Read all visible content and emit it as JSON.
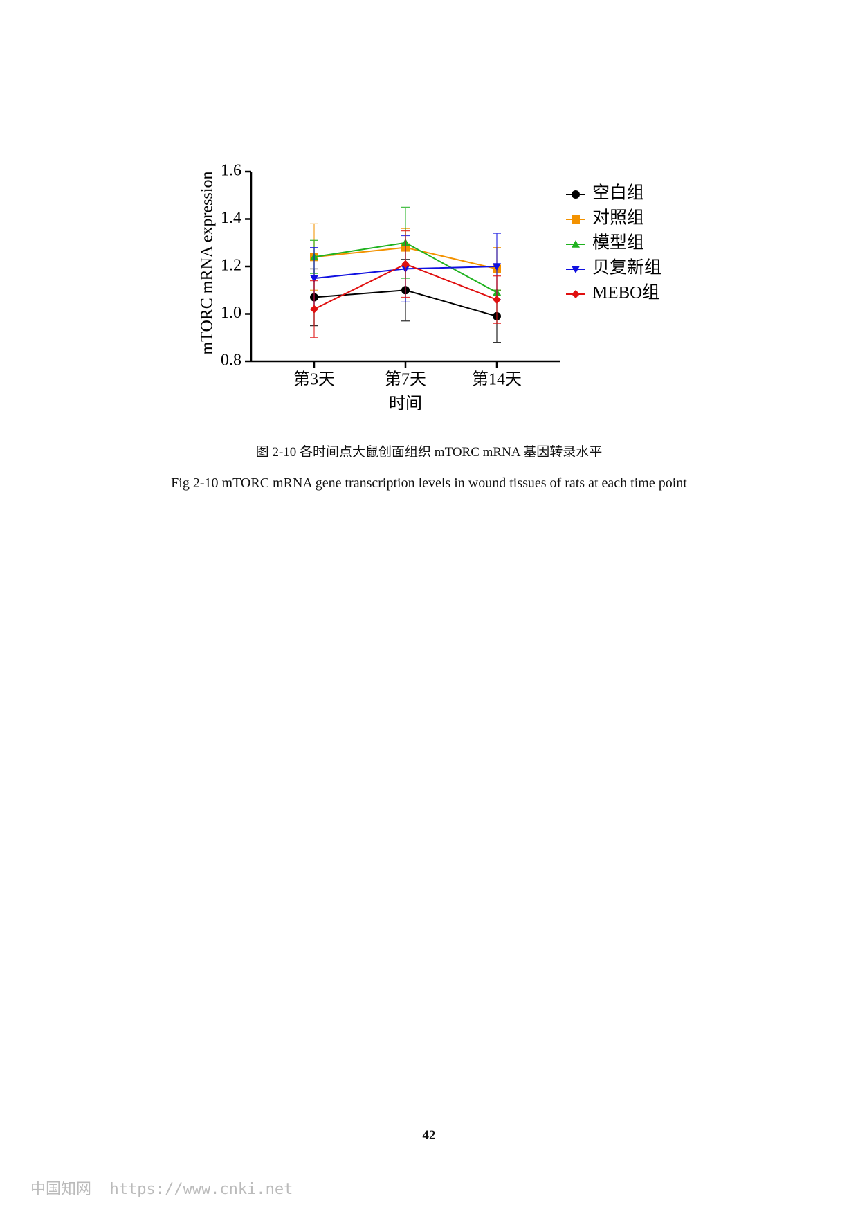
{
  "chart_data": {
    "type": "line",
    "ylabel": "mTORC mRNA expression",
    "xlabel": "时间",
    "categories": [
      "第3天",
      "第7天",
      "第14天"
    ],
    "ylim": [
      0.8,
      1.6
    ],
    "yticks": [
      0.8,
      {
        "value": 1,
        "label": "1.0"
      },
      1.2,
      1.4,
      1.6
    ],
    "legend": "right",
    "series": [
      {
        "name": "空白组",
        "color": "#000000",
        "marker": "circle",
        "values": [
          1.07,
          1.1,
          0.99
        ],
        "errors": [
          0.12,
          0.13,
          0.11
        ]
      },
      {
        "name": "对照组",
        "color": "#f39200",
        "marker": "square",
        "values": [
          1.24,
          1.28,
          1.19
        ],
        "errors": [
          0.14,
          0.08,
          0.09
        ]
      },
      {
        "name": "模型组",
        "color": "#1fb21f",
        "marker": "triangle-up",
        "values": [
          1.24,
          1.3,
          1.09
        ],
        "errors": [
          0.07,
          0.15,
          0.01
        ]
      },
      {
        "name": "贝复新组",
        "color": "#1010e0",
        "marker": "triangle-down",
        "values": [
          1.15,
          1.19,
          1.2
        ],
        "errors": [
          0.13,
          0.14,
          0.14
        ]
      },
      {
        "name": "MEBO组",
        "color": "#e01010",
        "marker": "diamond",
        "values": [
          1.02,
          1.21,
          1.06
        ],
        "errors": [
          0.12,
          0.14,
          0.1
        ]
      }
    ]
  },
  "caption": "图 2-10  各时间点大鼠创面组织 mTORC mRNA 基因转录水平",
  "caption_en": "Fig 2-10 mTORC mRNA gene transcription levels in wound tissues of rats at each time point",
  "page_number": "42",
  "watermark": "中国知网  https://www.cnki.net"
}
